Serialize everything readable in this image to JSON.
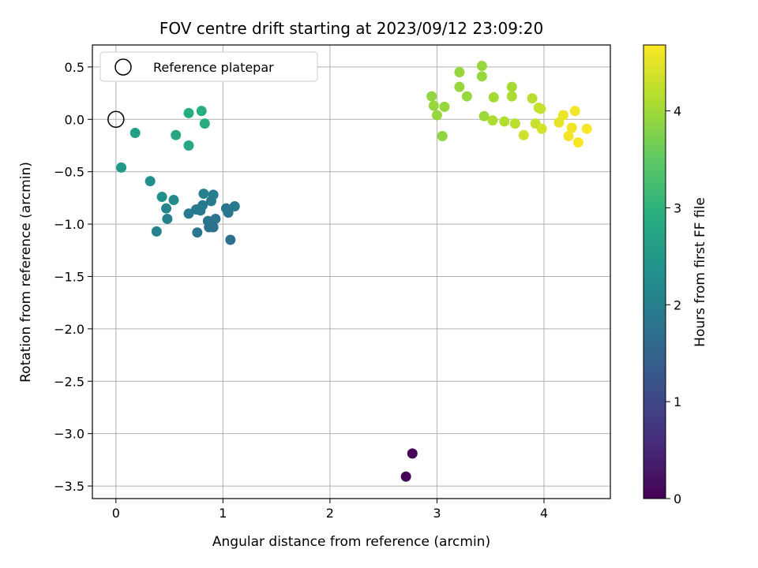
{
  "chart_data": {
    "type": "scatter",
    "title": "FOV centre drift starting at 2023/09/12 23:09:20",
    "xlabel": "Angular distance from reference (arcmin)",
    "ylabel": "Rotation from reference (arcmin)",
    "xlim": [
      -0.22,
      4.62
    ],
    "ylim": [
      -3.62,
      0.71
    ],
    "xticks": [
      0,
      1,
      2,
      3,
      4
    ],
    "yticks": [
      0.5,
      0.0,
      -0.5,
      -1.0,
      -1.5,
      -2.0,
      -2.5,
      -3.0,
      -3.5
    ],
    "xtick_labels": [
      "0",
      "1",
      "2",
      "3",
      "4"
    ],
    "ytick_labels": [
      "0.5",
      "0.0",
      "−0.5",
      "−1.0",
      "−1.5",
      "−2.0",
      "−2.5",
      "−3.0",
      "−3.5"
    ],
    "grid": true,
    "legend": {
      "position": "top-left",
      "entries": [
        "Reference platepar"
      ]
    },
    "reference_point": {
      "x": 0.0,
      "y": 0.0,
      "marker": "open-circle"
    },
    "colorbar": {
      "label": "Hours from first FF file",
      "colormap": "viridis",
      "range": [
        0,
        4.68
      ],
      "ticks": [
        0,
        1,
        2,
        3,
        4
      ],
      "tick_labels": [
        "0",
        "1",
        "2",
        "3",
        "4"
      ]
    },
    "points": [
      {
        "x": 2.71,
        "y": -3.41,
        "c": 0.05
      },
      {
        "x": 2.77,
        "y": -3.19,
        "c": 0.1
      },
      {
        "x": 0.05,
        "y": -0.46,
        "c": 2.55
      },
      {
        "x": 0.18,
        "y": -0.13,
        "c": 2.65
      },
      {
        "x": 0.32,
        "y": -0.59,
        "c": 2.3
      },
      {
        "x": 0.38,
        "y": -1.07,
        "c": 2.1
      },
      {
        "x": 0.43,
        "y": -0.74,
        "c": 2.35
      },
      {
        "x": 0.47,
        "y": -0.85,
        "c": 2.1
      },
      {
        "x": 0.48,
        "y": -0.95,
        "c": 2.05
      },
      {
        "x": 0.54,
        "y": -0.77,
        "c": 2.2
      },
      {
        "x": 0.56,
        "y": -0.15,
        "c": 2.85
      },
      {
        "x": 0.68,
        "y": -0.25,
        "c": 2.8
      },
      {
        "x": 0.68,
        "y": 0.06,
        "c": 2.9
      },
      {
        "x": 0.68,
        "y": -0.9,
        "c": 1.95
      },
      {
        "x": 0.75,
        "y": -0.86,
        "c": 1.9
      },
      {
        "x": 0.76,
        "y": -1.08,
        "c": 1.85
      },
      {
        "x": 0.79,
        "y": -0.87,
        "c": 1.9
      },
      {
        "x": 0.8,
        "y": 0.08,
        "c": 2.95
      },
      {
        "x": 0.81,
        "y": -0.82,
        "c": 1.95
      },
      {
        "x": 0.82,
        "y": -0.71,
        "c": 2.0
      },
      {
        "x": 0.83,
        "y": -0.04,
        "c": 2.95
      },
      {
        "x": 0.86,
        "y": -0.97,
        "c": 1.8
      },
      {
        "x": 0.87,
        "y": -1.03,
        "c": 1.75
      },
      {
        "x": 0.89,
        "y": -0.78,
        "c": 1.95
      },
      {
        "x": 0.9,
        "y": -0.98,
        "c": 1.8
      },
      {
        "x": 0.91,
        "y": -0.72,
        "c": 2.0
      },
      {
        "x": 0.91,
        "y": -1.03,
        "c": 1.75
      },
      {
        "x": 0.93,
        "y": -0.95,
        "c": 1.8
      },
      {
        "x": 1.03,
        "y": -0.85,
        "c": 1.85
      },
      {
        "x": 1.05,
        "y": -0.89,
        "c": 1.85
      },
      {
        "x": 1.07,
        "y": -1.15,
        "c": 1.75
      },
      {
        "x": 1.11,
        "y": -0.83,
        "c": 1.9
      },
      {
        "x": 2.95,
        "y": 0.22,
        "c": 3.9
      },
      {
        "x": 2.97,
        "y": 0.13,
        "c": 3.95
      },
      {
        "x": 3.0,
        "y": 0.04,
        "c": 3.95
      },
      {
        "x": 3.05,
        "y": -0.16,
        "c": 3.9
      },
      {
        "x": 3.07,
        "y": 0.12,
        "c": 3.95
      },
      {
        "x": 3.21,
        "y": 0.45,
        "c": 3.95
      },
      {
        "x": 3.21,
        "y": 0.31,
        "c": 3.95
      },
      {
        "x": 3.28,
        "y": 0.22,
        "c": 3.95
      },
      {
        "x": 3.42,
        "y": 0.51,
        "c": 3.95
      },
      {
        "x": 3.42,
        "y": 0.41,
        "c": 3.95
      },
      {
        "x": 3.44,
        "y": 0.03,
        "c": 4.0
      },
      {
        "x": 3.52,
        "y": -0.01,
        "c": 4.1
      },
      {
        "x": 3.53,
        "y": 0.21,
        "c": 4.05
      },
      {
        "x": 3.63,
        "y": -0.02,
        "c": 4.15
      },
      {
        "x": 3.7,
        "y": 0.31,
        "c": 4.05
      },
      {
        "x": 3.7,
        "y": 0.22,
        "c": 4.1
      },
      {
        "x": 3.73,
        "y": -0.04,
        "c": 4.2
      },
      {
        "x": 3.81,
        "y": -0.15,
        "c": 4.35
      },
      {
        "x": 3.89,
        "y": 0.2,
        "c": 4.2
      },
      {
        "x": 3.92,
        "y": -0.04,
        "c": 4.3
      },
      {
        "x": 3.95,
        "y": 0.11,
        "c": 4.25
      },
      {
        "x": 3.97,
        "y": 0.1,
        "c": 4.3
      },
      {
        "x": 3.98,
        "y": -0.09,
        "c": 4.4
      },
      {
        "x": 4.14,
        "y": -0.03,
        "c": 4.5
      },
      {
        "x": 4.18,
        "y": 0.04,
        "c": 4.55
      },
      {
        "x": 4.23,
        "y": -0.16,
        "c": 4.6
      },
      {
        "x": 4.26,
        "y": -0.08,
        "c": 4.6
      },
      {
        "x": 4.29,
        "y": 0.08,
        "c": 4.6
      },
      {
        "x": 4.32,
        "y": -0.22,
        "c": 4.65
      },
      {
        "x": 4.4,
        "y": -0.09,
        "c": 4.65
      }
    ]
  }
}
